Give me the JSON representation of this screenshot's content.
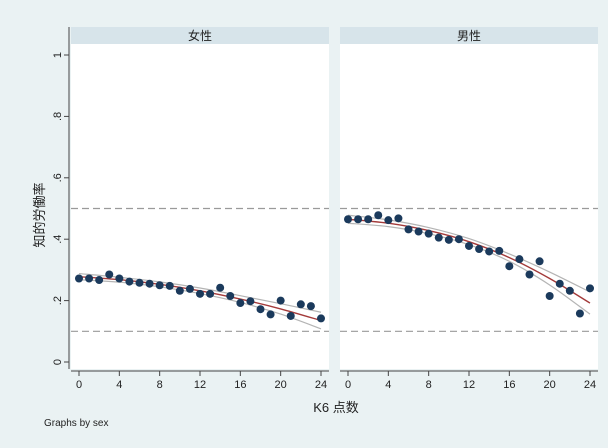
{
  "note": "Graphs by sex",
  "colors": {
    "background": "#eaf2f3",
    "panel": "#ffffff",
    "strip": "#d7e4ea",
    "point": "#1b3a5c",
    "fit": "#a33a3a",
    "ci": "#b4b4b4",
    "reference": "#9a9a9a"
  },
  "chart_data": {
    "type": "scatter",
    "xlabel": "K6 点数",
    "ylabel": "知的労働率",
    "xlim": [
      0,
      24
    ],
    "ylim": [
      0,
      1
    ],
    "xticks": [
      0,
      4,
      8,
      12,
      16,
      20,
      24
    ],
    "yticks": [
      {
        "value": 0,
        "label": "0"
      },
      {
        "value": 0.2,
        "label": ".2"
      },
      {
        "value": 0.4,
        "label": ".4"
      },
      {
        "value": 0.6,
        "label": ".6"
      },
      {
        "value": 0.8,
        "label": ".8"
      },
      {
        "value": 1,
        "label": "1"
      }
    ],
    "reference_lines": [
      0.1,
      0.5
    ],
    "grid": false,
    "panels": [
      {
        "title": "女性",
        "x": [
          0,
          1,
          2,
          3,
          4,
          5,
          6,
          7,
          8,
          9,
          10,
          11,
          12,
          13,
          14,
          15,
          16,
          17,
          18,
          19,
          20,
          21,
          22,
          23,
          24
        ],
        "y": [
          0.272,
          0.272,
          0.267,
          0.285,
          0.272,
          0.262,
          0.258,
          0.255,
          0.25,
          0.248,
          0.232,
          0.238,
          0.222,
          0.222,
          0.242,
          0.215,
          0.192,
          0.198,
          0.172,
          0.155,
          0.2,
          0.15,
          0.188,
          0.182,
          0.142
        ],
        "fit": [
          [
            0,
            0.278
          ],
          [
            4,
            0.268
          ],
          [
            8,
            0.253
          ],
          [
            12,
            0.232
          ],
          [
            16,
            0.205
          ],
          [
            20,
            0.173
          ],
          [
            24,
            0.135
          ]
        ],
        "ci_upper": [
          [
            0,
            0.288
          ],
          [
            4,
            0.276
          ],
          [
            8,
            0.261
          ],
          [
            12,
            0.241
          ],
          [
            16,
            0.216
          ],
          [
            20,
            0.19
          ],
          [
            24,
            0.162
          ]
        ],
        "ci_lower": [
          [
            0,
            0.268
          ],
          [
            4,
            0.26
          ],
          [
            8,
            0.245
          ],
          [
            12,
            0.223
          ],
          [
            16,
            0.194
          ],
          [
            20,
            0.156
          ],
          [
            24,
            0.108
          ]
        ]
      },
      {
        "title": "男性",
        "x": [
          0,
          1,
          2,
          3,
          4,
          5,
          6,
          7,
          8,
          9,
          10,
          11,
          12,
          13,
          14,
          15,
          16,
          17,
          18,
          19,
          20,
          21,
          22,
          23,
          24
        ],
        "y": [
          0.465,
          0.465,
          0.465,
          0.478,
          0.462,
          0.468,
          0.432,
          0.425,
          0.418,
          0.405,
          0.398,
          0.4,
          0.378,
          0.368,
          0.36,
          0.362,
          0.312,
          0.335,
          0.285,
          0.328,
          0.215,
          0.255,
          0.232,
          0.158,
          0.24
        ],
        "fit": [
          [
            0,
            0.465
          ],
          [
            4,
            0.452
          ],
          [
            8,
            0.428
          ],
          [
            12,
            0.392
          ],
          [
            16,
            0.34
          ],
          [
            20,
            0.272
          ],
          [
            24,
            0.192
          ]
        ],
        "ci_upper": [
          [
            0,
            0.478
          ],
          [
            4,
            0.463
          ],
          [
            8,
            0.438
          ],
          [
            12,
            0.402
          ],
          [
            16,
            0.352
          ],
          [
            20,
            0.293
          ],
          [
            24,
            0.228
          ]
        ],
        "ci_lower": [
          [
            0,
            0.452
          ],
          [
            4,
            0.441
          ],
          [
            8,
            0.418
          ],
          [
            12,
            0.382
          ],
          [
            16,
            0.328
          ],
          [
            20,
            0.251
          ],
          [
            24,
            0.156
          ]
        ]
      }
    ]
  }
}
